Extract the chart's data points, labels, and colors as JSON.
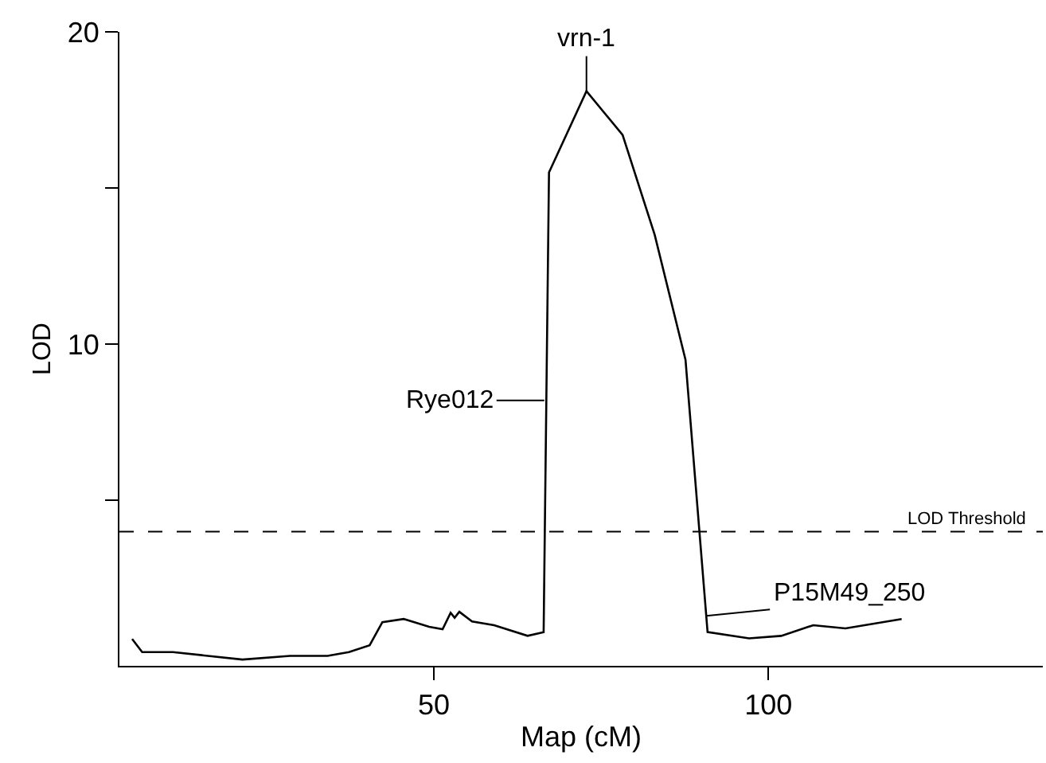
{
  "chart_data": {
    "type": "line",
    "xlabel": "Map (cM)",
    "ylabel": "LOD",
    "x": [
      4.9,
      6.4,
      11.0,
      21.4,
      28.5,
      34.1,
      37.3,
      40.4,
      42.3,
      45.5,
      49.3,
      51.3,
      52.5,
      53.1,
      53.8,
      55.7,
      59.0,
      64.0,
      66.4,
      67.2,
      72.8,
      78.2,
      83.0,
      87.6,
      90.9,
      97.1,
      101.9,
      106.7,
      111.5,
      119.9
    ],
    "values": [
      0.56,
      0.14,
      0.14,
      -0.1,
      0.02,
      0.02,
      0.14,
      0.36,
      1.1,
      1.2,
      0.95,
      0.87,
      1.4,
      1.24,
      1.43,
      1.12,
      1.0,
      0.66,
      0.78,
      15.5,
      18.1,
      16.7,
      13.5,
      9.5,
      0.78,
      0.58,
      0.66,
      1.0,
      0.9,
      1.2
    ],
    "color": "#000000",
    "xlim": [
      3,
      141
    ],
    "xticks": [
      50,
      100
    ],
    "ylim": [
      -0.3,
      20
    ],
    "yticks": [
      {
        "value": 5,
        "label": null
      },
      10,
      {
        "value": 15,
        "label": null
      },
      20
    ],
    "grid": false,
    "marker": "none",
    "line_style": "solid",
    "ref_lines": [
      {
        "axis": "y",
        "value": 4.0,
        "label": "LOD Threshold",
        "color": "#000000",
        "line_style": "dashed"
      }
    ],
    "annotations": [
      {
        "text": "vrn-1",
        "x": 72.8,
        "y": 18.1
      },
      {
        "text": "Rye012",
        "x": 66.5,
        "y": 8.2
      },
      {
        "text": "P15M49_250",
        "x": 90.7,
        "y": 1.3
      }
    ]
  }
}
